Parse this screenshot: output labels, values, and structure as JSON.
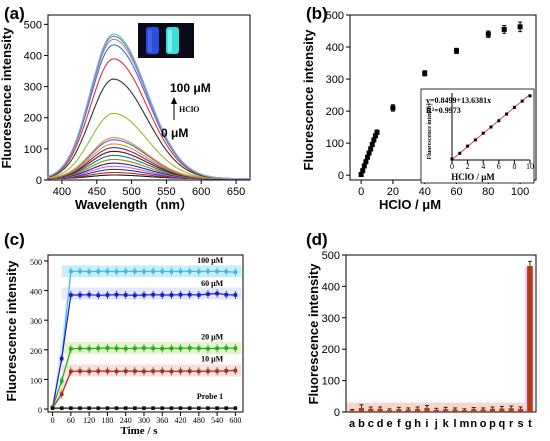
{
  "chart_data": [
    {
      "panel": "(a)",
      "type": "line",
      "xlabel": "Wavelength（nm）",
      "ylabel": "Fluorescence intensity",
      "xlim": [
        380,
        670
      ],
      "ylim": [
        0,
        530
      ],
      "xticks": [
        400,
        450,
        500,
        550,
        600,
        650
      ],
      "yticks": [
        0,
        100,
        200,
        300,
        400,
        500
      ],
      "peak_wavelength": 474,
      "annotations": {
        "top": "100 μM",
        "reagent": "HClO",
        "bottom": "0 μM"
      },
      "has_inset_photo": true,
      "series": [
        {
          "peak": 12,
          "color": "#1a1a1a"
        },
        {
          "peak": 20,
          "color": "#cc2222"
        },
        {
          "peak": 30,
          "color": "#1f3fb0"
        },
        {
          "peak": 40,
          "color": "#d66ad6"
        },
        {
          "peak": 50,
          "color": "#222299"
        },
        {
          "peak": 62,
          "color": "#9a8a00"
        },
        {
          "peak": 75,
          "color": "#008080"
        },
        {
          "peak": 88,
          "color": "#8b0000"
        },
        {
          "peak": 100,
          "color": "#6a2aa0"
        },
        {
          "peak": 112,
          "color": "#d4a017"
        },
        {
          "peak": 125,
          "color": "#4b6bd6"
        },
        {
          "peak": 132,
          "color": "#e08a3a"
        },
        {
          "peak": 210,
          "color": "#99bb33"
        },
        {
          "peak": 320,
          "color": "#333333"
        },
        {
          "peak": 385,
          "color": "#dd3333"
        },
        {
          "peak": 430,
          "color": "#4466dd"
        },
        {
          "peak": 448,
          "color": "#cc66cc"
        },
        {
          "peak": 458,
          "color": "#33aa66"
        },
        {
          "peak": 465,
          "color": "#88aadd"
        }
      ]
    },
    {
      "panel": "(b)",
      "type": "scatter",
      "xlabel": "HClO / μM",
      "ylabel": "Fluorescence intensity",
      "xlim": [
        -7,
        110
      ],
      "ylim": [
        -15,
        500
      ],
      "xticks": [
        0,
        20,
        40,
        60,
        80,
        100
      ],
      "yticks": [
        0,
        100,
        200,
        300,
        400,
        500
      ],
      "points": [
        {
          "x": 0,
          "y": 2,
          "err": 5
        },
        {
          "x": 1,
          "y": 14,
          "err": 5
        },
        {
          "x": 2,
          "y": 29,
          "err": 5
        },
        {
          "x": 3,
          "y": 42,
          "err": 5
        },
        {
          "x": 4,
          "y": 56,
          "err": 5
        },
        {
          "x": 5,
          "y": 69,
          "err": 6
        },
        {
          "x": 6,
          "y": 82,
          "err": 6
        },
        {
          "x": 7,
          "y": 96,
          "err": 6
        },
        {
          "x": 8,
          "y": 110,
          "err": 6
        },
        {
          "x": 9,
          "y": 123,
          "err": 6
        },
        {
          "x": 10,
          "y": 134,
          "err": 7
        },
        {
          "x": 20,
          "y": 210,
          "err": 10
        },
        {
          "x": 40,
          "y": 318,
          "err": 8
        },
        {
          "x": 60,
          "y": 388,
          "err": 8
        },
        {
          "x": 80,
          "y": 440,
          "err": 10
        },
        {
          "x": 90,
          "y": 455,
          "err": 12
        },
        {
          "x": 100,
          "y": 463,
          "err": 15
        }
      ],
      "inset": {
        "type": "scatter",
        "xlabel": "HClO / μM",
        "ylabel": "Fluorescence intensity",
        "xlim": [
          0,
          10
        ],
        "ylim": [
          0,
          140
        ],
        "xticks": [
          0,
          2,
          4,
          6,
          8,
          10
        ],
        "equation": "y=0.8499+13.6381x",
        "r2": "R²=0.9973",
        "fit": {
          "intercept": 0.8499,
          "slope": 13.6381
        },
        "points": [
          {
            "x": 0,
            "y": 2
          },
          {
            "x": 1,
            "y": 14
          },
          {
            "x": 2,
            "y": 29
          },
          {
            "x": 3,
            "y": 42
          },
          {
            "x": 4,
            "y": 56
          },
          {
            "x": 5,
            "y": 69
          },
          {
            "x": 6,
            "y": 82
          },
          {
            "x": 7,
            "y": 96
          },
          {
            "x": 8,
            "y": 110
          },
          {
            "x": 9,
            "y": 123
          },
          {
            "x": 10,
            "y": 134
          }
        ]
      }
    },
    {
      "panel": "(c)",
      "type": "line",
      "xlabel": "Time / s",
      "ylabel": "Fluorescence intensity",
      "xlim": [
        -15,
        625
      ],
      "ylim": [
        -10,
        520
      ],
      "xticks": [
        0,
        60,
        120,
        180,
        240,
        300,
        360,
        420,
        480,
        540,
        600
      ],
      "yticks": [
        0,
        100,
        200,
        300,
        400,
        500
      ],
      "x": [
        0,
        30,
        60,
        90,
        120,
        150,
        180,
        210,
        240,
        270,
        300,
        330,
        360,
        390,
        420,
        450,
        480,
        510,
        540,
        570,
        600
      ],
      "series": [
        {
          "name": "100 μM",
          "color": "#3fb8e0",
          "band": "#c8eef8",
          "values": [
            5,
            170,
            465,
            465,
            464,
            465,
            465,
            464,
            465,
            465,
            464,
            465,
            465,
            464,
            465,
            465,
            464,
            465,
            465,
            464,
            462
          ]
        },
        {
          "name": "60 μM",
          "color": "#1a1acc",
          "band": "#e4e8ff",
          "values": [
            5,
            170,
            385,
            385,
            386,
            384,
            385,
            386,
            385,
            384,
            385,
            386,
            385,
            385,
            386,
            386,
            385,
            388,
            390,
            386,
            385
          ]
        },
        {
          "name": "20 μM",
          "color": "#22aa22",
          "band": "#e4f6c8",
          "values": [
            5,
            95,
            203,
            205,
            204,
            205,
            206,
            205,
            204,
            205,
            206,
            205,
            204,
            205,
            205,
            206,
            205,
            204,
            205,
            206,
            205
          ]
        },
        {
          "name": "10 μM",
          "color": "#a0301a",
          "band": "#f8e0e0",
          "values": [
            5,
            50,
            127,
            128,
            127,
            128,
            128,
            127,
            128,
            128,
            127,
            128,
            128,
            127,
            128,
            128,
            127,
            128,
            128,
            129,
            130
          ]
        },
        {
          "name": "Probe 1",
          "color": "#111111",
          "band": "#ffffff",
          "values": [
            3,
            3,
            3,
            3,
            3,
            3,
            3,
            3,
            3,
            3,
            3,
            3,
            3,
            3,
            3,
            3,
            3,
            3,
            3,
            3,
            3
          ]
        }
      ]
    },
    {
      "panel": "(d)",
      "type": "bar",
      "ylabel": "Fluorescence intensity",
      "ylim": [
        0,
        500
      ],
      "yticks": [
        0,
        100,
        200,
        300,
        400,
        500
      ],
      "categories": [
        "a",
        "b",
        "c",
        "d",
        "e",
        "f",
        "g",
        "h",
        "i",
        "j",
        "k",
        "l",
        "m",
        "n",
        "o",
        "p",
        "q",
        "r",
        "s",
        "t"
      ],
      "values": [
        5,
        13,
        10,
        10,
        6,
        9,
        8,
        10,
        13,
        7,
        9,
        8,
        6,
        9,
        8,
        10,
        11,
        12,
        10,
        465
      ],
      "errors": [
        3,
        10,
        6,
        6,
        4,
        6,
        5,
        6,
        8,
        5,
        6,
        5,
        4,
        5,
        5,
        6,
        7,
        7,
        6,
        15
      ],
      "bar_color": "#b33a1a",
      "band_color": "#f7c9ee"
    }
  ]
}
